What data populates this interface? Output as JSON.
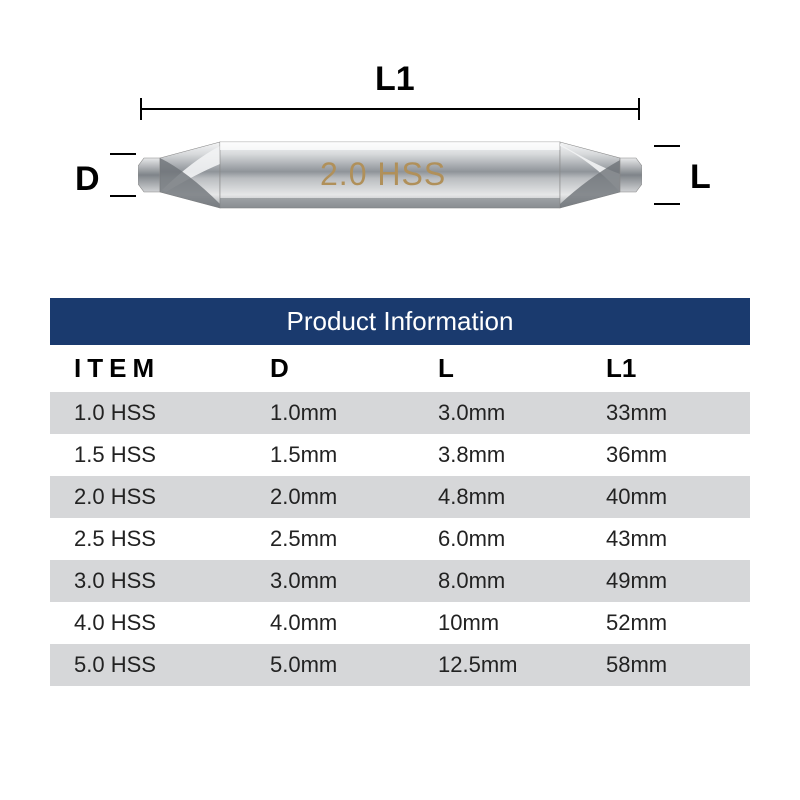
{
  "diagram": {
    "l1_label": "L1",
    "d_label": "D",
    "l_label": "L",
    "engraving": "2.0 HSS",
    "engraving_color": "#b0905a",
    "drill_body_gradient": [
      "#f8f8f8",
      "#d0d2d4",
      "#9a9ea2",
      "#e8e9ea",
      "#b8bbbe"
    ],
    "label_fontsize": 34,
    "engraving_fontsize": 32
  },
  "table": {
    "title": "Product Information",
    "title_bg": "#1a3a6e",
    "title_color": "#ffffff",
    "title_fontsize": 26,
    "header_fontsize": 26,
    "cell_fontsize": 22,
    "row_odd_bg": "#d6d7d9",
    "row_even_bg": "#ffffff",
    "columns": [
      {
        "key": "item",
        "label": "ITEM"
      },
      {
        "key": "d",
        "label": "D"
      },
      {
        "key": "l",
        "label": "L"
      },
      {
        "key": "l1",
        "label": "L1"
      }
    ],
    "rows": [
      {
        "item": "1.0 HSS",
        "d": "1.0mm",
        "l": "3.0mm",
        "l1": "33mm"
      },
      {
        "item": "1.5 HSS",
        "d": "1.5mm",
        "l": "3.8mm",
        "l1": "36mm"
      },
      {
        "item": "2.0 HSS",
        "d": "2.0mm",
        "l": "4.8mm",
        "l1": "40mm"
      },
      {
        "item": "2.5 HSS",
        "d": "2.5mm",
        "l": "6.0mm",
        "l1": "43mm"
      },
      {
        "item": "3.0 HSS",
        "d": "3.0mm",
        "l": "8.0mm",
        "l1": "49mm"
      },
      {
        "item": "4.0 HSS",
        "d": "4.0mm",
        "l": "10mm",
        "l1": "52mm"
      },
      {
        "item": "5.0 HSS",
        "d": "5.0mm",
        "l": "12.5mm",
        "l1": "58mm"
      }
    ]
  }
}
